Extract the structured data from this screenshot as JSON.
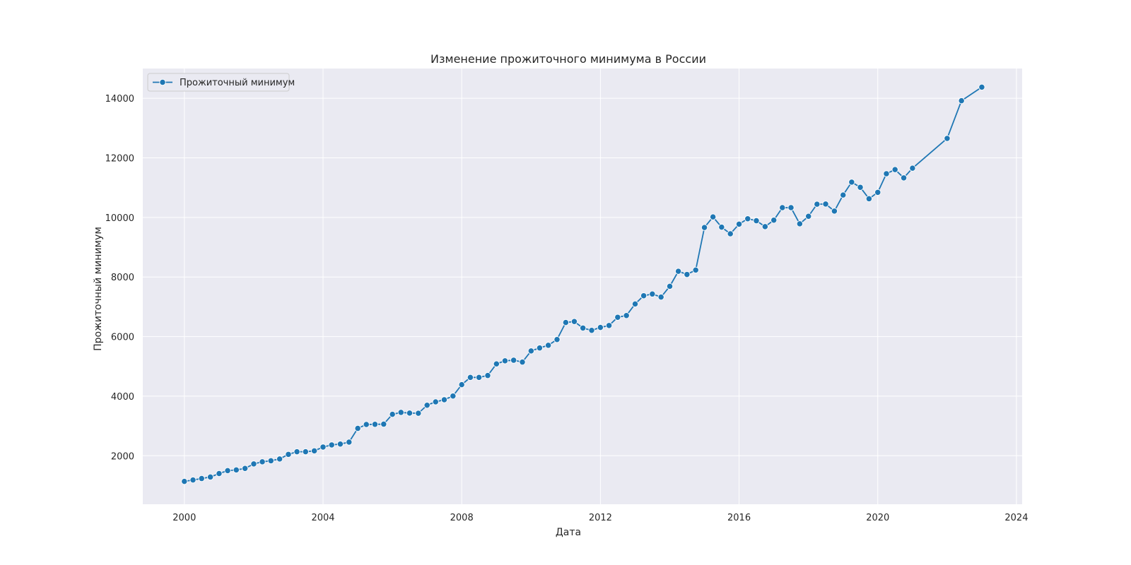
{
  "chart_data": {
    "type": "line",
    "title": "Изменение прожиточного минимума в России",
    "xlabel": "Дата",
    "ylabel": "Прожиточный минимум",
    "xlim": [
      "1998-10-20",
      "2024-03-01"
    ],
    "ylim": [
      370,
      15000
    ],
    "x_ticks": [
      {
        "date": "2000-01-01",
        "label": "2000"
      },
      {
        "date": "2004-01-01",
        "label": "2004"
      },
      {
        "date": "2008-01-01",
        "label": "2008"
      },
      {
        "date": "2012-01-01",
        "label": "2012"
      },
      {
        "date": "2016-01-01",
        "label": "2016"
      },
      {
        "date": "2020-01-01",
        "label": "2020"
      },
      {
        "date": "2024-01-01",
        "label": "2024"
      }
    ],
    "y_ticks": [
      2000,
      4000,
      6000,
      8000,
      10000,
      12000,
      14000
    ],
    "grid": true,
    "legend_position": "top-left",
    "colors": {
      "series": "#1f77b4",
      "plot_bg": "#eaeaf2",
      "grid": "#ffffff",
      "text": "#262626"
    },
    "series": [
      {
        "name": "Прожиточный минимум",
        "marker": "circle",
        "points": [
          {
            "x": "2000-01-01",
            "y": 1138
          },
          {
            "x": "2000-04-01",
            "y": 1185
          },
          {
            "x": "2000-07-01",
            "y": 1234
          },
          {
            "x": "2000-10-01",
            "y": 1285
          },
          {
            "x": "2001-01-01",
            "y": 1401
          },
          {
            "x": "2001-04-01",
            "y": 1500
          },
          {
            "x": "2001-07-01",
            "y": 1523
          },
          {
            "x": "2001-10-01",
            "y": 1574
          },
          {
            "x": "2002-01-01",
            "y": 1724
          },
          {
            "x": "2002-04-01",
            "y": 1795
          },
          {
            "x": "2002-07-01",
            "y": 1830
          },
          {
            "x": "2002-10-01",
            "y": 1891
          },
          {
            "x": "2003-01-01",
            "y": 2046
          },
          {
            "x": "2003-04-01",
            "y": 2134
          },
          {
            "x": "2003-07-01",
            "y": 2134
          },
          {
            "x": "2003-10-01",
            "y": 2163
          },
          {
            "x": "2004-01-01",
            "y": 2292
          },
          {
            "x": "2004-04-01",
            "y": 2363
          },
          {
            "x": "2004-07-01",
            "y": 2391
          },
          {
            "x": "2004-10-01",
            "y": 2457
          },
          {
            "x": "2005-01-01",
            "y": 2918
          },
          {
            "x": "2005-04-01",
            "y": 3049
          },
          {
            "x": "2005-07-01",
            "y": 3054
          },
          {
            "x": "2005-10-01",
            "y": 3060
          },
          {
            "x": "2006-01-01",
            "y": 3391
          },
          {
            "x": "2006-04-01",
            "y": 3454
          },
          {
            "x": "2006-07-01",
            "y": 3431
          },
          {
            "x": "2006-10-01",
            "y": 3426
          },
          {
            "x": "2007-01-01",
            "y": 3695
          },
          {
            "x": "2007-04-01",
            "y": 3809
          },
          {
            "x": "2007-07-01",
            "y": 3880
          },
          {
            "x": "2007-10-01",
            "y": 4005
          },
          {
            "x": "2008-01-01",
            "y": 4386
          },
          {
            "x": "2008-04-01",
            "y": 4630
          },
          {
            "x": "2008-07-01",
            "y": 4630
          },
          {
            "x": "2008-10-01",
            "y": 4693
          },
          {
            "x": "2009-01-01",
            "y": 5083
          },
          {
            "x": "2009-04-01",
            "y": 5187
          },
          {
            "x": "2009-07-01",
            "y": 5206
          },
          {
            "x": "2009-10-01",
            "y": 5144
          },
          {
            "x": "2010-01-01",
            "y": 5518
          },
          {
            "x": "2010-04-01",
            "y": 5618
          },
          {
            "x": "2010-07-01",
            "y": 5707
          },
          {
            "x": "2010-10-01",
            "y": 5902
          },
          {
            "x": "2011-01-01",
            "y": 6473
          },
          {
            "x": "2011-04-01",
            "y": 6505
          },
          {
            "x": "2011-07-01",
            "y": 6287
          },
          {
            "x": "2011-10-01",
            "y": 6209
          },
          {
            "x": "2012-01-01",
            "y": 6307
          },
          {
            "x": "2012-04-01",
            "y": 6373
          },
          {
            "x": "2012-07-01",
            "y": 6649
          },
          {
            "x": "2012-10-01",
            "y": 6707
          },
          {
            "x": "2013-01-01",
            "y": 7095
          },
          {
            "x": "2013-04-01",
            "y": 7372
          },
          {
            "x": "2013-07-01",
            "y": 7429
          },
          {
            "x": "2013-10-01",
            "y": 7326
          },
          {
            "x": "2014-01-01",
            "y": 7688
          },
          {
            "x": "2014-04-01",
            "y": 8192
          },
          {
            "x": "2014-07-01",
            "y": 8086
          },
          {
            "x": "2014-10-01",
            "y": 8234
          },
          {
            "x": "2015-01-01",
            "y": 9662
          },
          {
            "x": "2015-04-01",
            "y": 10017
          },
          {
            "x": "2015-07-01",
            "y": 9673
          },
          {
            "x": "2015-10-01",
            "y": 9452
          },
          {
            "x": "2016-01-01",
            "y": 9776
          },
          {
            "x": "2016-04-01",
            "y": 9956
          },
          {
            "x": "2016-07-01",
            "y": 9889
          },
          {
            "x": "2016-10-01",
            "y": 9691
          },
          {
            "x": "2017-01-01",
            "y": 9909
          },
          {
            "x": "2017-04-01",
            "y": 10329
          },
          {
            "x": "2017-07-01",
            "y": 10328
          },
          {
            "x": "2017-10-01",
            "y": 9786
          },
          {
            "x": "2018-01-01",
            "y": 10038
          },
          {
            "x": "2018-04-01",
            "y": 10444
          },
          {
            "x": "2018-07-01",
            "y": 10451
          },
          {
            "x": "2018-10-01",
            "y": 10213
          },
          {
            "x": "2019-01-01",
            "y": 10753
          },
          {
            "x": "2019-04-01",
            "y": 11186
          },
          {
            "x": "2019-07-01",
            "y": 11012
          },
          {
            "x": "2019-10-01",
            "y": 10627
          },
          {
            "x": "2020-01-01",
            "y": 10843
          },
          {
            "x": "2020-04-01",
            "y": 11468
          },
          {
            "x": "2020-07-01",
            "y": 11606
          },
          {
            "x": "2020-10-01",
            "y": 11329
          },
          {
            "x": "2021-01-01",
            "y": 11653
          },
          {
            "x": "2022-01-01",
            "y": 12654
          },
          {
            "x": "2022-06-01",
            "y": 13919
          },
          {
            "x": "2023-01-01",
            "y": 14375
          }
        ]
      }
    ]
  }
}
